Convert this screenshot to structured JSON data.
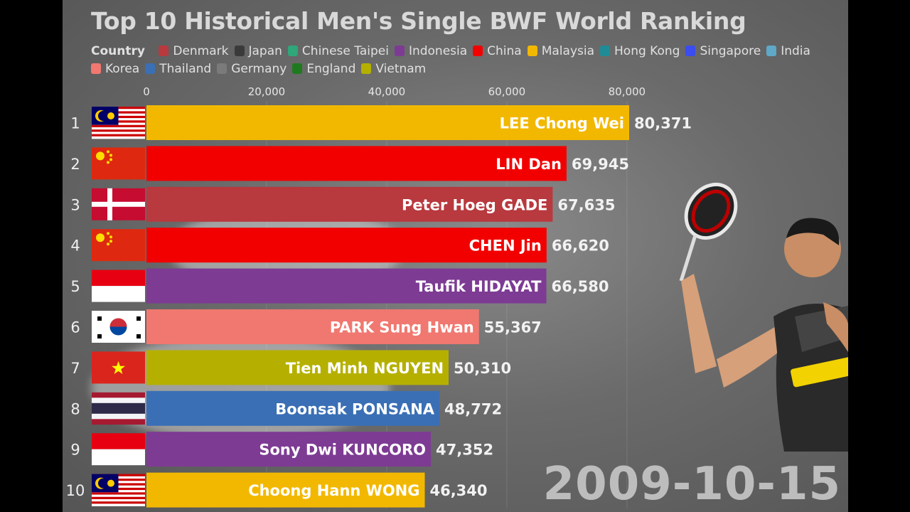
{
  "chart_data": {
    "type": "bar",
    "orientation": "horizontal",
    "title": "Top 10 Historical Men's Single BWF World Ranking",
    "legend_title": "Country",
    "legend": [
      {
        "name": "Denmark",
        "color": "#b8393e"
      },
      {
        "name": "Japan",
        "color": "#3a3a3a"
      },
      {
        "name": "Chinese Taipei",
        "color": "#2fa77a"
      },
      {
        "name": "Indonesia",
        "color": "#7d3b93"
      },
      {
        "name": "China",
        "color": "#f20000"
      },
      {
        "name": "Malaysia",
        "color": "#f2b800"
      },
      {
        "name": "Hong Kong",
        "color": "#1d8c96"
      },
      {
        "name": "Singapore",
        "color": "#3b4cf0"
      },
      {
        "name": "India",
        "color": "#5fa8c8"
      },
      {
        "name": "Korea",
        "color": "#f07870"
      },
      {
        "name": "Thailand",
        "color": "#3a6fb5"
      },
      {
        "name": "Germany",
        "color": "#7a7a7a"
      },
      {
        "name": "England",
        "color": "#1f7a1f"
      },
      {
        "name": "Vietnam",
        "color": "#b5b000"
      }
    ],
    "xlim": [
      0,
      80371
    ],
    "x_ticks": [
      0,
      20000,
      40000,
      60000,
      80000
    ],
    "x_tick_labels": [
      "0",
      "20,000",
      "40,000",
      "60,000",
      "80,000"
    ],
    "bars": [
      {
        "rank": "1",
        "name": "LEE Chong Wei",
        "country": "Malaysia",
        "value": 80371,
        "value_label": "80,371",
        "color": "#f2b800",
        "flag": "malaysia-flag"
      },
      {
        "rank": "2",
        "name": "LIN Dan",
        "country": "China",
        "value": 69945,
        "value_label": "69,945",
        "color": "#f20000",
        "flag": "china-flag"
      },
      {
        "rank": "3",
        "name": "Peter Hoeg GADE",
        "country": "Denmark",
        "value": 67635,
        "value_label": "67,635",
        "color": "#b8393e",
        "flag": "denmark-flag"
      },
      {
        "rank": "4",
        "name": "CHEN Jin",
        "country": "China",
        "value": 66620,
        "value_label": "66,620",
        "color": "#f20000",
        "flag": "china-flag"
      },
      {
        "rank": "5",
        "name": "Taufik HIDAYAT",
        "country": "Indonesia",
        "value": 66580,
        "value_label": "66,580",
        "color": "#7d3b93",
        "flag": "indonesia-flag"
      },
      {
        "rank": "6",
        "name": "PARK Sung Hwan",
        "country": "Korea",
        "value": 55367,
        "value_label": "55,367",
        "color": "#f07870",
        "flag": "korea-flag"
      },
      {
        "rank": "7",
        "name": "Tien Minh NGUYEN",
        "country": "Vietnam",
        "value": 50310,
        "value_label": "50,310",
        "color": "#b5b000",
        "flag": "vietnam-flag"
      },
      {
        "rank": "8",
        "name": "Boonsak PONSANA",
        "country": "Thailand",
        "value": 48772,
        "value_label": "48,772",
        "color": "#3a6fb5",
        "flag": "thailand-flag"
      },
      {
        "rank": "9",
        "name": "Sony Dwi KUNCORO",
        "country": "Indonesia",
        "value": 47352,
        "value_label": "47,352",
        "color": "#7d3b93",
        "flag": "indonesia-flag"
      },
      {
        "rank": "10",
        "name": "Choong Hann WONG",
        "country": "Malaysia",
        "value": 46340,
        "value_label": "46,340",
        "color": "#f2b800",
        "flag": "malaysia-flag"
      }
    ],
    "date_label": "2009-10-15",
    "background_image": "badminton-player-photo"
  }
}
